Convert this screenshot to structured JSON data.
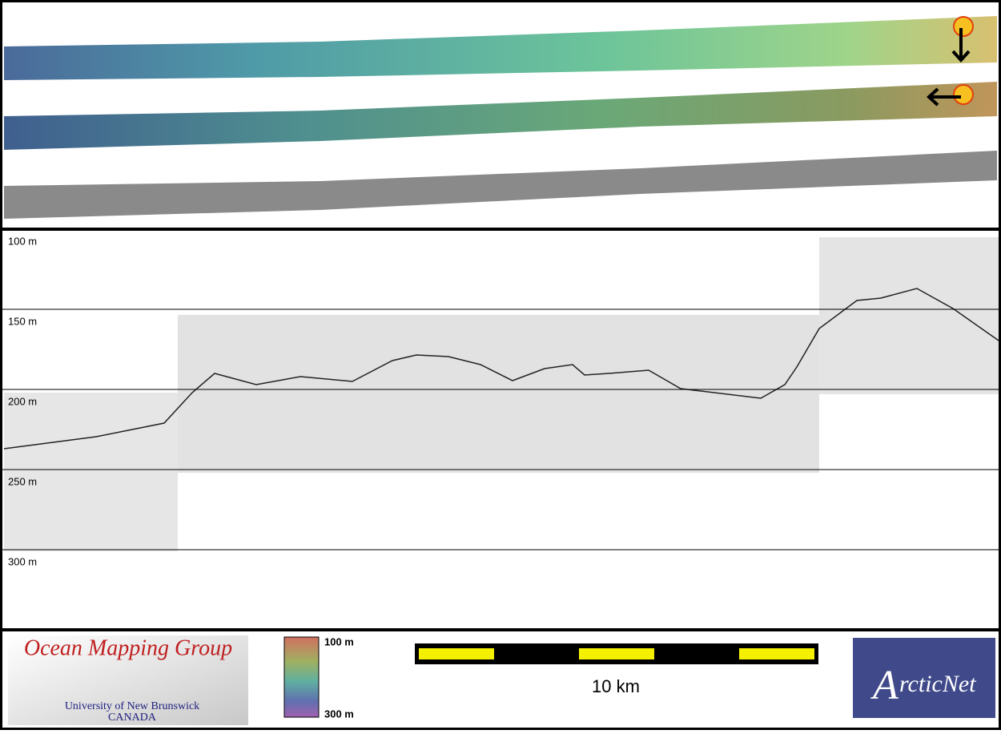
{
  "profile": {
    "depth_labels": [
      "100 m",
      "150 m",
      "200 m",
      "250 m",
      "300 m"
    ]
  },
  "logos": {
    "omg_title": "Ocean Mapping Group",
    "omg_university": "University of New Brunswick",
    "omg_country": "CANADA",
    "arcticnet_initial": "A",
    "arcticnet_rest": "rcticNet"
  },
  "colorbar": {
    "top_label": "100 m",
    "bottom_label": "300 m"
  },
  "scale_bar": {
    "label": "10 km"
  }
}
